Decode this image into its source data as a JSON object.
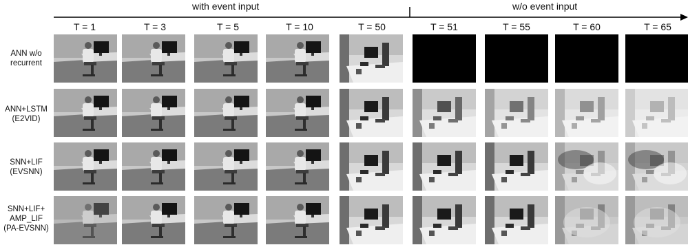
{
  "header": {
    "with_event_label": "with event input",
    "without_event_label": "w/o event input"
  },
  "time_steps": [
    "T = 1",
    "T = 3",
    "T = 5",
    "T = 10",
    "T = 50",
    "T = 51",
    "T = 55",
    "T = 60",
    "T = 65"
  ],
  "rows": [
    {
      "lines": [
        "ANN w/o",
        "recurrent"
      ]
    },
    {
      "lines": [
        "ANN+LSTM",
        "(E2VID)"
      ]
    },
    {
      "lines": [
        "SNN+LIF",
        "(EVSNN)"
      ]
    },
    {
      "lines": [
        "SNN+LIF+",
        "AMP_LIF",
        "(PA-EVSNN)"
      ]
    }
  ],
  "colors": {
    "text": "#111111",
    "frame_black": "#000000"
  }
}
